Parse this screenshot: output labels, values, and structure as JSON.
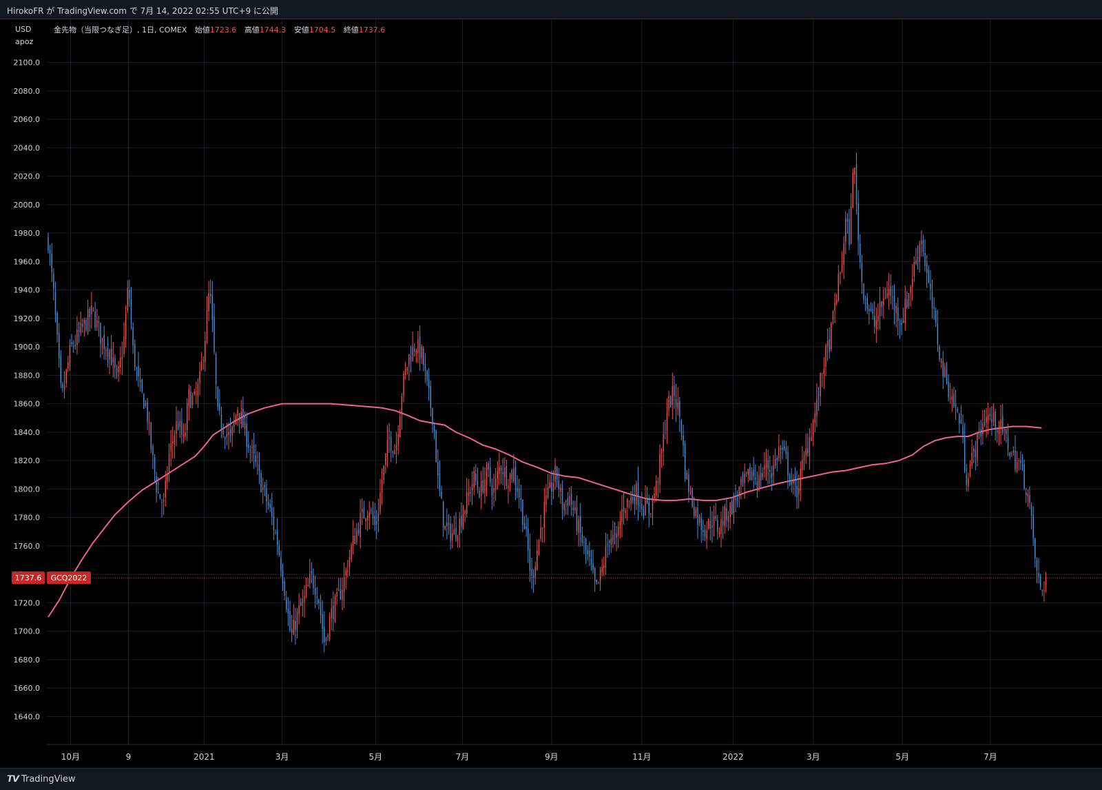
{
  "header": {
    "publish_text": "HirokoFR が TradingView.com で 7月 14, 2022 02:55 UTC+9 に公開"
  },
  "footer": {
    "brand": "TradingView",
    "logo_icon": "tradingview-logo-icon"
  },
  "colors": {
    "up": "#ef5350",
    "down": "#4a90d9",
    "ma": "#f06292",
    "grid": "#1c1f26",
    "axis_text": "#d1d4dc",
    "badge": "#c62828",
    "price_line": "#e53935"
  },
  "chart_data": {
    "type": "candlestick",
    "currency": "USD",
    "scale_mode": "apoz",
    "legend": {
      "name": "金先物（当限つなぎ足）, 1日, COMEX",
      "open_label": "始値",
      "open": "1723.6",
      "high_label": "高値",
      "high": "1744.3",
      "low_label": "安値",
      "low": "1704.5",
      "close_label": "終値",
      "close": "1737.6"
    },
    "last_price": "1737.6",
    "symbol_badge": "GCQ2022",
    "ylim": [
      1630,
      2110
    ],
    "y_ticks": [
      "2100.0",
      "2080.0",
      "2060.0",
      "2040.0",
      "2020.0",
      "2000.0",
      "1980.0",
      "1960.0",
      "1940.0",
      "1920.0",
      "1900.0",
      "1880.0",
      "1860.0",
      "1840.0",
      "1820.0",
      "1800.0",
      "1780.0",
      "1760.0",
      "1740.0",
      "1720.0",
      "1700.0",
      "1680.0",
      "1660.0",
      "1640.0"
    ],
    "x_ticks": [
      {
        "label": "10月",
        "day": 20
      },
      {
        "label": "9",
        "day": 72
      },
      {
        "label": "2021",
        "day": 140
      },
      {
        "label": "3月",
        "day": 210
      },
      {
        "label": "5月",
        "day": 294
      },
      {
        "label": "7月",
        "day": 372
      },
      {
        "label": "9月",
        "day": 452
      },
      {
        "label": "11月",
        "day": 533
      },
      {
        "label": "2022",
        "day": 615
      },
      {
        "label": "3月",
        "day": 687
      },
      {
        "label": "5月",
        "day": 767
      },
      {
        "label": "7月",
        "day": 846
      }
    ],
    "xlim": [
      0,
      898
    ],
    "anchors": [
      [
        0,
        1975
      ],
      [
        5,
        1935
      ],
      [
        12,
        1862
      ],
      [
        20,
        1898
      ],
      [
        30,
        1912
      ],
      [
        40,
        1925
      ],
      [
        48,
        1905
      ],
      [
        55,
        1898
      ],
      [
        62,
        1875
      ],
      [
        68,
        1905
      ],
      [
        72,
        1945
      ],
      [
        76,
        1898
      ],
      [
        82,
        1870
      ],
      [
        88,
        1858
      ],
      [
        93,
        1825
      ],
      [
        98,
        1798
      ],
      [
        104,
        1788
      ],
      [
        108,
        1822
      ],
      [
        116,
        1848
      ],
      [
        122,
        1832
      ],
      [
        126,
        1865
      ],
      [
        132,
        1862
      ],
      [
        136,
        1876
      ],
      [
        141,
        1908
      ],
      [
        145,
        1942
      ],
      [
        148,
        1908
      ],
      [
        152,
        1852
      ],
      [
        158,
        1842
      ],
      [
        164,
        1835
      ],
      [
        170,
        1858
      ],
      [
        176,
        1842
      ],
      [
        184,
        1822
      ],
      [
        192,
        1802
      ],
      [
        200,
        1782
      ],
      [
        206,
        1762
      ],
      [
        212,
        1732
      ],
      [
        218,
        1695
      ],
      [
        224,
        1712
      ],
      [
        230,
        1722
      ],
      [
        236,
        1738
      ],
      [
        242,
        1728
      ],
      [
        248,
        1692
      ],
      [
        254,
        1712
      ],
      [
        260,
        1722
      ],
      [
        266,
        1737
      ],
      [
        272,
        1758
      ],
      [
        280,
        1778
      ],
      [
        288,
        1788
      ],
      [
        294,
        1772
      ],
      [
        300,
        1808
      ],
      [
        306,
        1835
      ],
      [
        312,
        1828
      ],
      [
        318,
        1872
      ],
      [
        324,
        1893
      ],
      [
        330,
        1902
      ],
      [
        336,
        1893
      ],
      [
        340,
        1872
      ],
      [
        346,
        1848
      ],
      [
        350,
        1805
      ],
      [
        356,
        1772
      ],
      [
        364,
        1768
      ],
      [
        370,
        1778
      ],
      [
        376,
        1792
      ],
      [
        382,
        1808
      ],
      [
        388,
        1798
      ],
      [
        394,
        1812
      ],
      [
        400,
        1798
      ],
      [
        406,
        1818
      ],
      [
        412,
        1808
      ],
      [
        418,
        1812
      ],
      [
        424,
        1792
      ],
      [
        430,
        1762
      ],
      [
        434,
        1735
      ],
      [
        440,
        1762
      ],
      [
        446,
        1788
      ],
      [
        452,
        1802
      ],
      [
        456,
        1812
      ],
      [
        462,
        1788
      ],
      [
        468,
        1795
      ],
      [
        474,
        1778
      ],
      [
        480,
        1762
      ],
      [
        486,
        1748
      ],
      [
        492,
        1728
      ],
      [
        498,
        1745
      ],
      [
        504,
        1768
      ],
      [
        510,
        1762
      ],
      [
        516,
        1788
      ],
      [
        522,
        1792
      ],
      [
        528,
        1798
      ],
      [
        534,
        1788
      ],
      [
        540,
        1785
      ],
      [
        546,
        1802
      ],
      [
        552,
        1832
      ],
      [
        556,
        1858
      ],
      [
        562,
        1868
      ],
      [
        568,
        1848
      ],
      [
        572,
        1812
      ],
      [
        578,
        1792
      ],
      [
        584,
        1778
      ],
      [
        590,
        1772
      ],
      [
        596,
        1778
      ],
      [
        602,
        1772
      ],
      [
        608,
        1782
      ],
      [
        614,
        1788
      ],
      [
        620,
        1798
      ],
      [
        626,
        1805
      ],
      [
        632,
        1812
      ],
      [
        638,
        1805
      ],
      [
        644,
        1818
      ],
      [
        650,
        1812
      ],
      [
        656,
        1828
      ],
      [
        662,
        1822
      ],
      [
        668,
        1802
      ],
      [
        672,
        1798
      ],
      [
        678,
        1818
      ],
      [
        684,
        1838
      ],
      [
        690,
        1858
      ],
      [
        696,
        1888
      ],
      [
        702,
        1905
      ],
      [
        708,
        1938
      ],
      [
        712,
        1955
      ],
      [
        716,
        1988
      ],
      [
        720,
        1975
      ],
      [
        723,
        2038
      ],
      [
        726,
        1995
      ],
      [
        730,
        1948
      ],
      [
        736,
        1928
      ],
      [
        742,
        1915
      ],
      [
        748,
        1928
      ],
      [
        754,
        1942
      ],
      [
        760,
        1928
      ],
      [
        766,
        1918
      ],
      [
        772,
        1935
      ],
      [
        778,
        1958
      ],
      [
        784,
        1978
      ],
      [
        790,
        1945
      ],
      [
        796,
        1918
      ],
      [
        802,
        1888
      ],
      [
        808,
        1872
      ],
      [
        814,
        1858
      ],
      [
        820,
        1845
      ],
      [
        824,
        1808
      ],
      [
        830,
        1822
      ],
      [
        836,
        1838
      ],
      [
        842,
        1852
      ],
      [
        848,
        1848
      ],
      [
        854,
        1845
      ],
      [
        860,
        1835
      ],
      [
        866,
        1822
      ],
      [
        872,
        1818
      ],
      [
        876,
        1808
      ],
      [
        880,
        1795
      ],
      [
        884,
        1768
      ],
      [
        888,
        1738
      ],
      [
        892,
        1728
      ],
      [
        896,
        1737.6
      ]
    ],
    "ma200": [
      [
        0,
        1710
      ],
      [
        10,
        1722
      ],
      [
        20,
        1737
      ],
      [
        30,
        1750
      ],
      [
        40,
        1762
      ],
      [
        50,
        1772
      ],
      [
        60,
        1782
      ],
      [
        72,
        1791
      ],
      [
        84,
        1799
      ],
      [
        96,
        1805
      ],
      [
        108,
        1811
      ],
      [
        120,
        1817
      ],
      [
        132,
        1823
      ],
      [
        140,
        1830
      ],
      [
        148,
        1838
      ],
      [
        158,
        1843
      ],
      [
        168,
        1848
      ],
      [
        180,
        1853
      ],
      [
        194,
        1857
      ],
      [
        210,
        1860
      ],
      [
        226,
        1860
      ],
      [
        240,
        1860
      ],
      [
        254,
        1860
      ],
      [
        270,
        1859
      ],
      [
        286,
        1858
      ],
      [
        300,
        1857
      ],
      [
        312,
        1855
      ],
      [
        322,
        1852
      ],
      [
        334,
        1848
      ],
      [
        348,
        1846
      ],
      [
        356,
        1845
      ],
      [
        366,
        1840
      ],
      [
        378,
        1836
      ],
      [
        390,
        1831
      ],
      [
        402,
        1828
      ],
      [
        414,
        1824
      ],
      [
        426,
        1819
      ],
      [
        440,
        1815
      ],
      [
        452,
        1811
      ],
      [
        464,
        1809
      ],
      [
        476,
        1808
      ],
      [
        488,
        1805
      ],
      [
        500,
        1802
      ],
      [
        512,
        1799
      ],
      [
        524,
        1796
      ],
      [
        538,
        1793
      ],
      [
        552,
        1792
      ],
      [
        564,
        1792
      ],
      [
        576,
        1793
      ],
      [
        588,
        1792
      ],
      [
        600,
        1792
      ],
      [
        614,
        1794
      ],
      [
        628,
        1798
      ],
      [
        642,
        1801
      ],
      [
        656,
        1804
      ],
      [
        668,
        1806
      ],
      [
        680,
        1808
      ],
      [
        692,
        1810
      ],
      [
        704,
        1812
      ],
      [
        716,
        1813
      ],
      [
        728,
        1815
      ],
      [
        740,
        1817
      ],
      [
        752,
        1818
      ],
      [
        764,
        1820
      ],
      [
        776,
        1824
      ],
      [
        786,
        1830
      ],
      [
        796,
        1834
      ],
      [
        806,
        1836
      ],
      [
        816,
        1837
      ],
      [
        826,
        1837
      ],
      [
        836,
        1840
      ],
      [
        846,
        1842
      ],
      [
        856,
        1843
      ],
      [
        866,
        1844
      ],
      [
        878,
        1844
      ],
      [
        892,
        1843
      ]
    ]
  }
}
